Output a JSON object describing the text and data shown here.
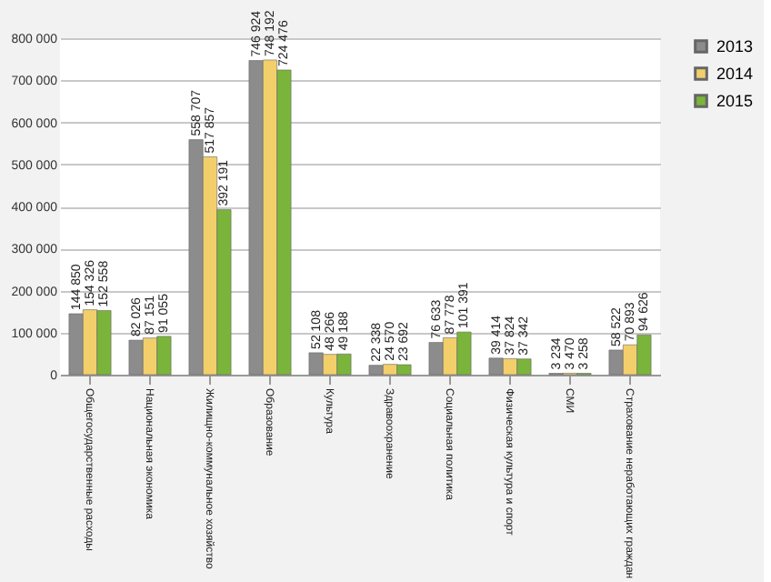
{
  "chart_data": {
    "type": "bar",
    "categories": [
      "Общегосударственные расходы",
      "Национальная экономика",
      "Жилищно-коммунальное хозяйство",
      "Образование",
      "Культура",
      "Здравоохранение",
      "Социальная политика",
      "Физическая культура и спорт",
      "СМИ",
      "Страхование неработающих граждан"
    ],
    "series": [
      {
        "name": "2013",
        "color": "#8c8c8c",
        "values": [
          144850,
          82026,
          558707,
          746924,
          52108,
          22338,
          76633,
          39414,
          3234,
          58522
        ],
        "value_labels": [
          "144 850",
          "82 026",
          "558 707",
          "746 924",
          "52 108",
          "22 338",
          "76 633",
          "39 414",
          "3 234",
          "58 522"
        ]
      },
      {
        "name": "2014",
        "color": "#f2cf6a",
        "values": [
          154326,
          87151,
          517857,
          748192,
          48266,
          24570,
          87778,
          37824,
          3470,
          70893
        ],
        "value_labels": [
          "154 326",
          "87 151",
          "517 857",
          "748 192",
          "48 266",
          "24 570",
          "87 778",
          "37 824",
          "3 470",
          "70 893"
        ]
      },
      {
        "name": "2015",
        "color": "#7bb43a",
        "values": [
          152558,
          91055,
          392191,
          724476,
          49188,
          23692,
          101391,
          37342,
          3258,
          94626
        ],
        "value_labels": [
          "152 558",
          "91 055",
          "392 191",
          "724 476",
          "49 188",
          "23 692",
          "101 391",
          "37 342",
          "3 258",
          "94 626"
        ]
      }
    ],
    "ylim": [
      0,
      800000
    ],
    "yticks": [
      0,
      {
        "value": 100000,
        "label": "100 000"
      },
      {
        "value": 200000,
        "label": "200 000"
      },
      {
        "value": 300000,
        "label": "300 000"
      },
      {
        "value": 400000,
        "label": "400 000"
      },
      {
        "value": 500000,
        "label": "500 000"
      },
      {
        "value": 600000,
        "label": "600 000"
      },
      {
        "value": 700000,
        "label": "700 000"
      },
      {
        "value": 800000,
        "label": "800 000"
      }
    ],
    "grid": "y",
    "legend": "right"
  }
}
